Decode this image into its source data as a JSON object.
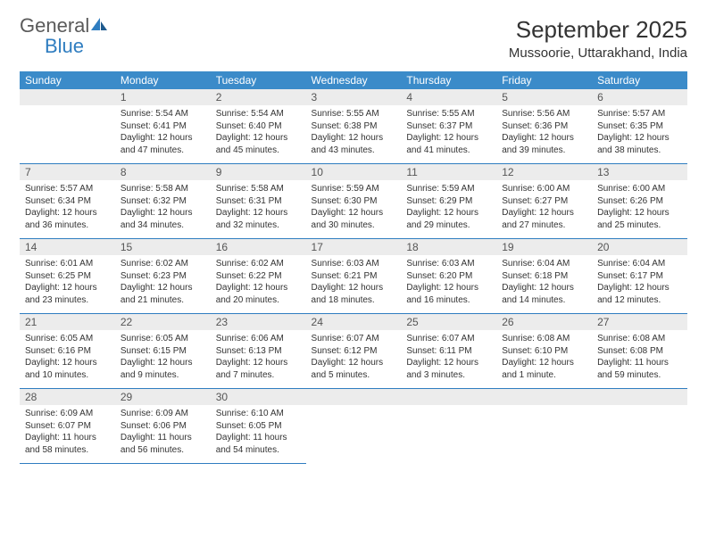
{
  "logo": {
    "text1": "General",
    "text2": "Blue"
  },
  "title": "September 2025",
  "location": "Mussoorie, Uttarakhand, India",
  "colors": {
    "header_bg": "#3b8bc9",
    "header_text": "#ffffff",
    "daynum_bg": "#ececec",
    "daynum_text": "#555555",
    "body_text": "#333333",
    "rule": "#2f7dc0",
    "logo_gray": "#5a5a5a",
    "logo_blue": "#2f7dc0"
  },
  "day_labels": [
    "Sunday",
    "Monday",
    "Tuesday",
    "Wednesday",
    "Thursday",
    "Friday",
    "Saturday"
  ],
  "weeks": [
    [
      {
        "num": "",
        "sunrise": "",
        "sunset": "",
        "daylight": ""
      },
      {
        "num": "1",
        "sunrise": "Sunrise: 5:54 AM",
        "sunset": "Sunset: 6:41 PM",
        "daylight": "Daylight: 12 hours and 47 minutes."
      },
      {
        "num": "2",
        "sunrise": "Sunrise: 5:54 AM",
        "sunset": "Sunset: 6:40 PM",
        "daylight": "Daylight: 12 hours and 45 minutes."
      },
      {
        "num": "3",
        "sunrise": "Sunrise: 5:55 AM",
        "sunset": "Sunset: 6:38 PM",
        "daylight": "Daylight: 12 hours and 43 minutes."
      },
      {
        "num": "4",
        "sunrise": "Sunrise: 5:55 AM",
        "sunset": "Sunset: 6:37 PM",
        "daylight": "Daylight: 12 hours and 41 minutes."
      },
      {
        "num": "5",
        "sunrise": "Sunrise: 5:56 AM",
        "sunset": "Sunset: 6:36 PM",
        "daylight": "Daylight: 12 hours and 39 minutes."
      },
      {
        "num": "6",
        "sunrise": "Sunrise: 5:57 AM",
        "sunset": "Sunset: 6:35 PM",
        "daylight": "Daylight: 12 hours and 38 minutes."
      }
    ],
    [
      {
        "num": "7",
        "sunrise": "Sunrise: 5:57 AM",
        "sunset": "Sunset: 6:34 PM",
        "daylight": "Daylight: 12 hours and 36 minutes."
      },
      {
        "num": "8",
        "sunrise": "Sunrise: 5:58 AM",
        "sunset": "Sunset: 6:32 PM",
        "daylight": "Daylight: 12 hours and 34 minutes."
      },
      {
        "num": "9",
        "sunrise": "Sunrise: 5:58 AM",
        "sunset": "Sunset: 6:31 PM",
        "daylight": "Daylight: 12 hours and 32 minutes."
      },
      {
        "num": "10",
        "sunrise": "Sunrise: 5:59 AM",
        "sunset": "Sunset: 6:30 PM",
        "daylight": "Daylight: 12 hours and 30 minutes."
      },
      {
        "num": "11",
        "sunrise": "Sunrise: 5:59 AM",
        "sunset": "Sunset: 6:29 PM",
        "daylight": "Daylight: 12 hours and 29 minutes."
      },
      {
        "num": "12",
        "sunrise": "Sunrise: 6:00 AM",
        "sunset": "Sunset: 6:27 PM",
        "daylight": "Daylight: 12 hours and 27 minutes."
      },
      {
        "num": "13",
        "sunrise": "Sunrise: 6:00 AM",
        "sunset": "Sunset: 6:26 PM",
        "daylight": "Daylight: 12 hours and 25 minutes."
      }
    ],
    [
      {
        "num": "14",
        "sunrise": "Sunrise: 6:01 AM",
        "sunset": "Sunset: 6:25 PM",
        "daylight": "Daylight: 12 hours and 23 minutes."
      },
      {
        "num": "15",
        "sunrise": "Sunrise: 6:02 AM",
        "sunset": "Sunset: 6:23 PM",
        "daylight": "Daylight: 12 hours and 21 minutes."
      },
      {
        "num": "16",
        "sunrise": "Sunrise: 6:02 AM",
        "sunset": "Sunset: 6:22 PM",
        "daylight": "Daylight: 12 hours and 20 minutes."
      },
      {
        "num": "17",
        "sunrise": "Sunrise: 6:03 AM",
        "sunset": "Sunset: 6:21 PM",
        "daylight": "Daylight: 12 hours and 18 minutes."
      },
      {
        "num": "18",
        "sunrise": "Sunrise: 6:03 AM",
        "sunset": "Sunset: 6:20 PM",
        "daylight": "Daylight: 12 hours and 16 minutes."
      },
      {
        "num": "19",
        "sunrise": "Sunrise: 6:04 AM",
        "sunset": "Sunset: 6:18 PM",
        "daylight": "Daylight: 12 hours and 14 minutes."
      },
      {
        "num": "20",
        "sunrise": "Sunrise: 6:04 AM",
        "sunset": "Sunset: 6:17 PM",
        "daylight": "Daylight: 12 hours and 12 minutes."
      }
    ],
    [
      {
        "num": "21",
        "sunrise": "Sunrise: 6:05 AM",
        "sunset": "Sunset: 6:16 PM",
        "daylight": "Daylight: 12 hours and 10 minutes."
      },
      {
        "num": "22",
        "sunrise": "Sunrise: 6:05 AM",
        "sunset": "Sunset: 6:15 PM",
        "daylight": "Daylight: 12 hours and 9 minutes."
      },
      {
        "num": "23",
        "sunrise": "Sunrise: 6:06 AM",
        "sunset": "Sunset: 6:13 PM",
        "daylight": "Daylight: 12 hours and 7 minutes."
      },
      {
        "num": "24",
        "sunrise": "Sunrise: 6:07 AM",
        "sunset": "Sunset: 6:12 PM",
        "daylight": "Daylight: 12 hours and 5 minutes."
      },
      {
        "num": "25",
        "sunrise": "Sunrise: 6:07 AM",
        "sunset": "Sunset: 6:11 PM",
        "daylight": "Daylight: 12 hours and 3 minutes."
      },
      {
        "num": "26",
        "sunrise": "Sunrise: 6:08 AM",
        "sunset": "Sunset: 6:10 PM",
        "daylight": "Daylight: 12 hours and 1 minute."
      },
      {
        "num": "27",
        "sunrise": "Sunrise: 6:08 AM",
        "sunset": "Sunset: 6:08 PM",
        "daylight": "Daylight: 11 hours and 59 minutes."
      }
    ],
    [
      {
        "num": "28",
        "sunrise": "Sunrise: 6:09 AM",
        "sunset": "Sunset: 6:07 PM",
        "daylight": "Daylight: 11 hours and 58 minutes."
      },
      {
        "num": "29",
        "sunrise": "Sunrise: 6:09 AM",
        "sunset": "Sunset: 6:06 PM",
        "daylight": "Daylight: 11 hours and 56 minutes."
      },
      {
        "num": "30",
        "sunrise": "Sunrise: 6:10 AM",
        "sunset": "Sunset: 6:05 PM",
        "daylight": "Daylight: 11 hours and 54 minutes."
      },
      {
        "num": "",
        "sunrise": "",
        "sunset": "",
        "daylight": ""
      },
      {
        "num": "",
        "sunrise": "",
        "sunset": "",
        "daylight": ""
      },
      {
        "num": "",
        "sunrise": "",
        "sunset": "",
        "daylight": ""
      },
      {
        "num": "",
        "sunrise": "",
        "sunset": "",
        "daylight": ""
      }
    ]
  ]
}
